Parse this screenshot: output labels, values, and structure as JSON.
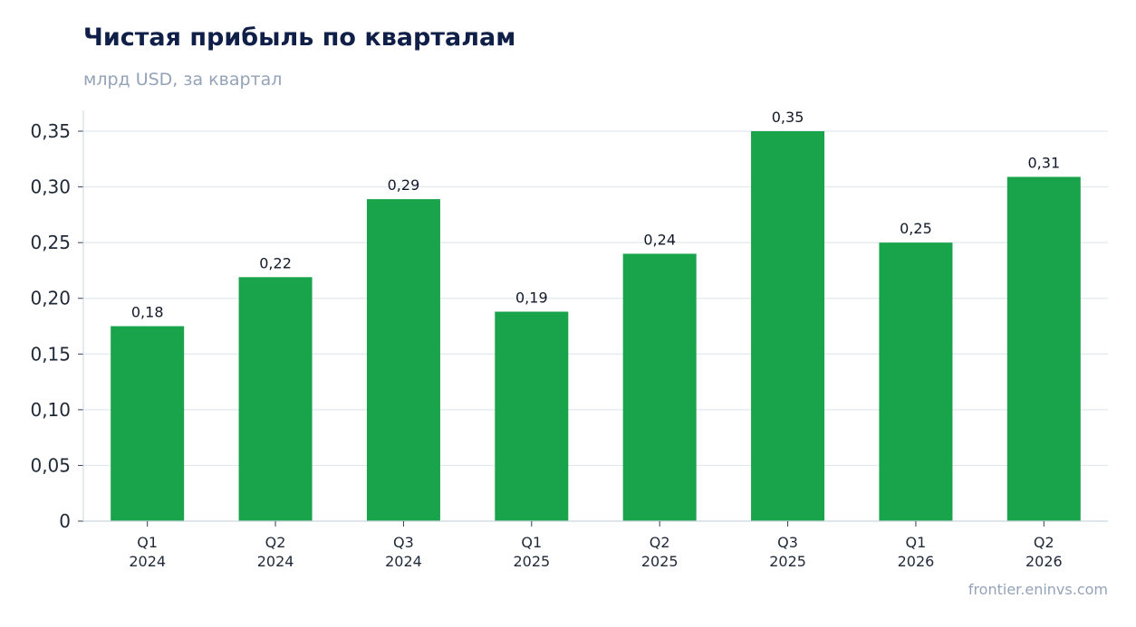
{
  "header": {
    "title": "Чистая прибыль по кварталам",
    "subtitle": "млрд USD, за квартал"
  },
  "footer": {
    "source": "frontier.eninvs.com"
  },
  "colors": {
    "bar": "#19a34a",
    "grid": "#e2e8f0",
    "axis": "#cbd5e1"
  },
  "chart_data": {
    "type": "bar",
    "categories": [
      [
        "Q1",
        "2024"
      ],
      [
        "Q2",
        "2024"
      ],
      [
        "Q3",
        "2024"
      ],
      [
        "Q1",
        "2025"
      ],
      [
        "Q2",
        "2025"
      ],
      [
        "Q3",
        "2025"
      ],
      [
        "Q1",
        "2026"
      ],
      [
        "Q2",
        "2026"
      ]
    ],
    "values": [
      0.175,
      0.219,
      0.289,
      0.188,
      0.24,
      0.35,
      0.25,
      0.309
    ],
    "data_labels": [
      "0,18",
      "0,22",
      "0,29",
      "0,19",
      "0,24",
      "0,35",
      "0,25",
      "0,31"
    ],
    "ylim": [
      0,
      0.35
    ],
    "yticks": [
      0,
      0.05,
      0.1,
      0.15,
      0.2,
      0.25,
      0.3,
      0.35
    ],
    "ytick_labels": [
      "0",
      "0,05",
      "0,10",
      "0,15",
      "0,20",
      "0,25",
      "0,30",
      "0,35"
    ],
    "grid": true,
    "legend": "none"
  }
}
